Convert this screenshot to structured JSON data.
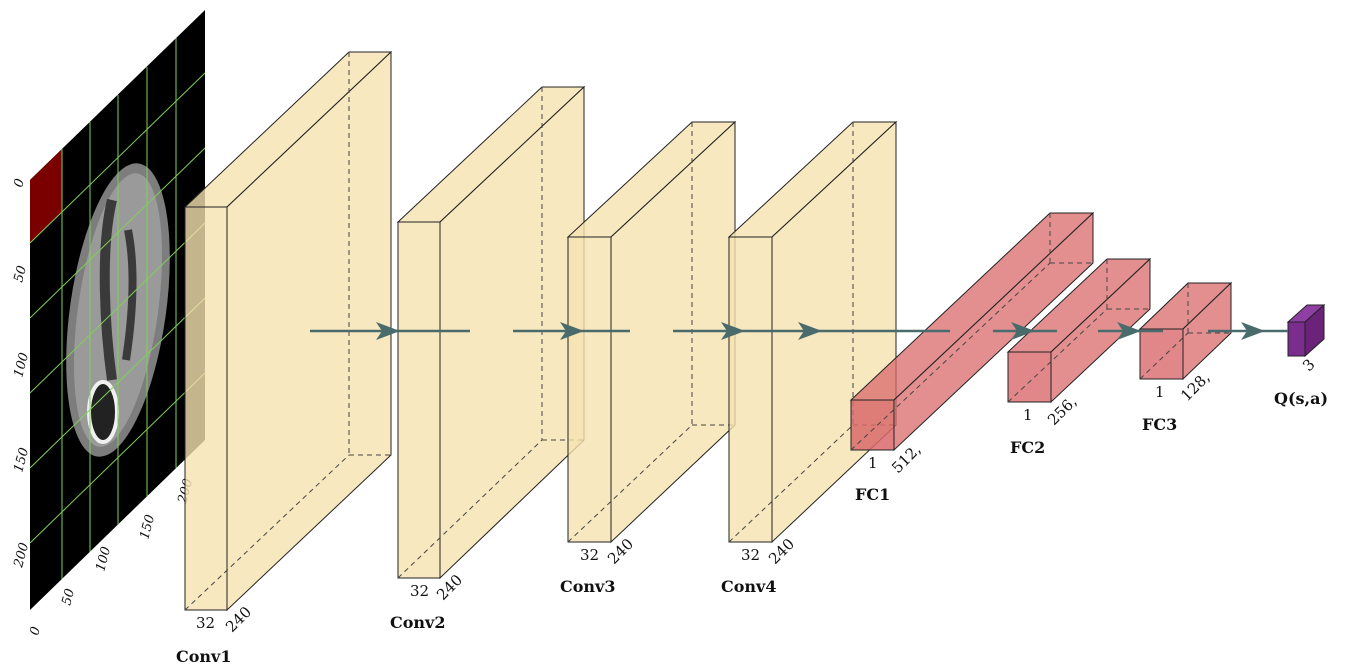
{
  "input_axes": {
    "left_ticks": [
      "0",
      "50",
      "100",
      "150",
      "200"
    ],
    "bottom_ticks": [
      "0",
      "50",
      "100",
      "150",
      "200"
    ]
  },
  "layers": [
    {
      "id": "conv1",
      "label": "Conv1",
      "dims": [
        "32",
        "240"
      ],
      "color": "#f6e2b0"
    },
    {
      "id": "conv2",
      "label": "Conv2",
      "dims": [
        "32",
        "240"
      ],
      "color": "#f6e2b0"
    },
    {
      "id": "conv3",
      "label": "Conv3",
      "dims": [
        "32",
        "240"
      ],
      "color": "#f6e2b0"
    },
    {
      "id": "conv4",
      "label": "Conv4",
      "dims": [
        "32",
        "240"
      ],
      "color": "#f6e2b0"
    },
    {
      "id": "fc1",
      "label": "FC1",
      "dims": [
        "1",
        "512,"
      ],
      "color": "#d9696b"
    },
    {
      "id": "fc2",
      "label": "FC2",
      "dims": [
        "1",
        "256,"
      ],
      "color": "#d9696b"
    },
    {
      "id": "fc3",
      "label": "FC3",
      "dims": [
        "1",
        "128,"
      ],
      "color": "#d9696b"
    },
    {
      "id": "q",
      "label": "Q(s,a)",
      "dims": [
        "3"
      ],
      "color": "#7b2d8e"
    }
  ],
  "colors": {
    "conv_fill": "#f6e2b0",
    "fc_fill": "#d9696b",
    "output_fill": "#7b2d8e",
    "arrow": "#4a6b6b",
    "grid": "#7fd05a",
    "highlight_patch": "#7a0000"
  }
}
